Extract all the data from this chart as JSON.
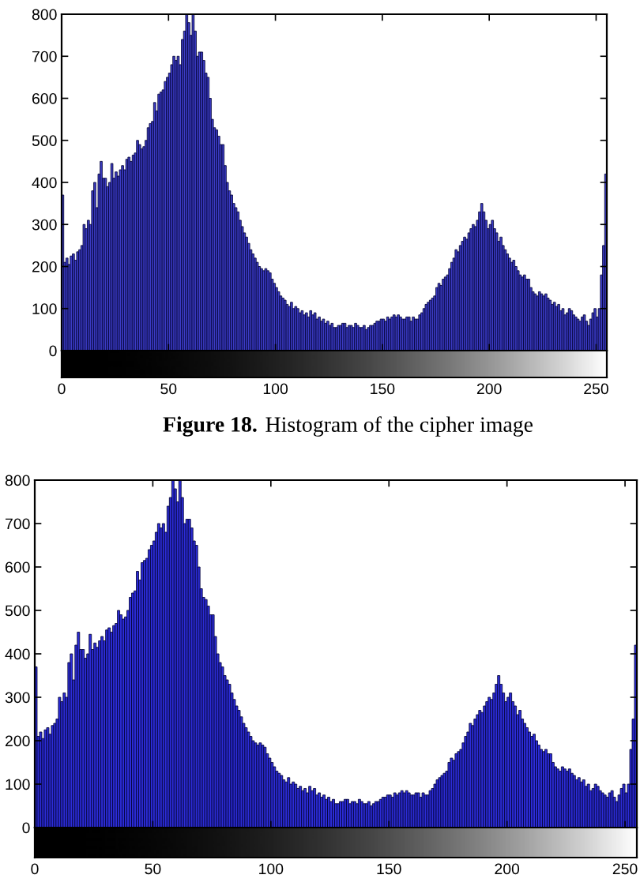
{
  "chart_data": [
    {
      "type": "histogram",
      "bins": [
        0,
        1,
        2,
        3,
        4,
        5,
        6,
        7,
        8,
        9,
        10,
        11,
        12,
        13,
        14,
        15,
        16,
        17,
        18,
        19,
        20,
        21,
        22,
        23,
        24,
        25,
        26,
        27,
        28,
        29,
        30,
        31,
        32,
        33,
        34,
        35,
        36,
        37,
        38,
        39,
        40,
        41,
        42,
        43,
        44,
        45,
        46,
        47,
        48,
        49,
        50,
        51,
        52,
        53,
        54,
        55,
        56,
        57,
        58,
        59,
        60,
        61,
        62,
        63,
        64,
        65,
        66,
        67,
        68,
        69,
        70,
        71,
        72,
        73,
        74,
        75,
        76,
        77,
        78,
        79,
        80,
        81,
        82,
        83,
        84,
        85,
        86,
        87,
        88,
        89,
        90,
        91,
        92,
        93,
        94,
        95,
        96,
        97,
        98,
        99,
        100,
        101,
        102,
        103,
        104,
        105,
        106,
        107,
        108,
        109,
        110,
        111,
        112,
        113,
        114,
        115,
        116,
        117,
        118,
        119,
        120,
        121,
        122,
        123,
        124,
        125,
        126,
        127,
        128,
        129,
        130,
        131,
        132,
        133,
        134,
        135,
        136,
        137,
        138,
        139,
        140,
        141,
        142,
        143,
        144,
        145,
        146,
        147,
        148,
        149,
        150,
        151,
        152,
        153,
        154,
        155,
        156,
        157,
        158,
        159,
        160,
        161,
        162,
        163,
        164,
        165,
        166,
        167,
        168,
        169,
        170,
        171,
        172,
        173,
        174,
        175,
        176,
        177,
        178,
        179,
        180,
        181,
        182,
        183,
        184,
        185,
        186,
        187,
        188,
        189,
        190,
        191,
        192,
        193,
        194,
        195,
        196,
        197,
        198,
        199,
        200,
        201,
        202,
        203,
        204,
        205,
        206,
        207,
        208,
        209,
        210,
        211,
        212,
        213,
        214,
        215,
        216,
        217,
        218,
        219,
        220,
        221,
        222,
        223,
        224,
        225,
        226,
        227,
        228,
        229,
        230,
        231,
        232,
        233,
        234,
        235,
        236,
        237,
        238,
        239,
        240,
        241,
        242,
        243,
        244,
        245,
        246,
        247,
        248,
        249,
        250,
        251,
        252,
        253,
        254,
        255
      ],
      "values": [
        370,
        210,
        220,
        205,
        225,
        230,
        215,
        235,
        240,
        250,
        300,
        290,
        310,
        300,
        380,
        400,
        340,
        420,
        450,
        410,
        410,
        390,
        400,
        445,
        410,
        425,
        415,
        430,
        440,
        430,
        455,
        460,
        450,
        465,
        470,
        500,
        490,
        480,
        485,
        500,
        530,
        540,
        545,
        590,
        570,
        610,
        615,
        620,
        640,
        650,
        660,
        680,
        700,
        690,
        700,
        680,
        740,
        760,
        800,
        780,
        750,
        800,
        760,
        700,
        710,
        710,
        690,
        660,
        650,
        600,
        550,
        530,
        525,
        510,
        490,
        490,
        440,
        400,
        380,
        370,
        350,
        340,
        330,
        310,
        295,
        280,
        270,
        255,
        240,
        230,
        220,
        210,
        200,
        195,
        190,
        195,
        190,
        185,
        170,
        160,
        150,
        140,
        130,
        125,
        120,
        110,
        105,
        115,
        100,
        105,
        100,
        90,
        95,
        85,
        90,
        80,
        95,
        85,
        90,
        75,
        80,
        70,
        75,
        65,
        70,
        60,
        65,
        55,
        55,
        60,
        60,
        65,
        65,
        55,
        60,
        60,
        55,
        65,
        60,
        55,
        55,
        60,
        50,
        55,
        60,
        60,
        65,
        70,
        70,
        75,
        75,
        70,
        80,
        75,
        80,
        85,
        80,
        85,
        80,
        75,
        75,
        80,
        80,
        70,
        80,
        75,
        75,
        85,
        90,
        100,
        110,
        115,
        120,
        125,
        130,
        150,
        160,
        155,
        170,
        175,
        180,
        195,
        210,
        220,
        240,
        235,
        250,
        260,
        270,
        265,
        280,
        290,
        300,
        295,
        310,
        330,
        350,
        330,
        310,
        290,
        300,
        310,
        290,
        280,
        260,
        270,
        250,
        240,
        230,
        220,
        210,
        215,
        200,
        190,
        180,
        175,
        180,
        170,
        170,
        150,
        140,
        135,
        130,
        140,
        135,
        130,
        135,
        125,
        120,
        110,
        115,
        105,
        110,
        95,
        100,
        85,
        90,
        100,
        95,
        85,
        80,
        75,
        70,
        80,
        85,
        70,
        60,
        75,
        90,
        100,
        80,
        100,
        180,
        250,
        420
      ],
      "color": "#3b3bc4",
      "xlim": [
        0,
        255
      ],
      "xticks": [
        0,
        50,
        100,
        150,
        200,
        250
      ],
      "ylim": [
        0,
        800
      ],
      "yticks": [
        0,
        100,
        200,
        300,
        400,
        500,
        600,
        700,
        800
      ],
      "annotations": [
        "Figure 18.",
        "Histogram of the cipher image"
      ]
    },
    {
      "type": "histogram",
      "bins": [
        0,
        1,
        2,
        3,
        4,
        5,
        6,
        7,
        8,
        9,
        10,
        11,
        12,
        13,
        14,
        15,
        16,
        17,
        18,
        19,
        20,
        21,
        22,
        23,
        24,
        25,
        26,
        27,
        28,
        29,
        30,
        31,
        32,
        33,
        34,
        35,
        36,
        37,
        38,
        39,
        40,
        41,
        42,
        43,
        44,
        45,
        46,
        47,
        48,
        49,
        50,
        51,
        52,
        53,
        54,
        55,
        56,
        57,
        58,
        59,
        60,
        61,
        62,
        63,
        64,
        65,
        66,
        67,
        68,
        69,
        70,
        71,
        72,
        73,
        74,
        75,
        76,
        77,
        78,
        79,
        80,
        81,
        82,
        83,
        84,
        85,
        86,
        87,
        88,
        89,
        90,
        91,
        92,
        93,
        94,
        95,
        96,
        97,
        98,
        99,
        100,
        101,
        102,
        103,
        104,
        105,
        106,
        107,
        108,
        109,
        110,
        111,
        112,
        113,
        114,
        115,
        116,
        117,
        118,
        119,
        120,
        121,
        122,
        123,
        124,
        125,
        126,
        127,
        128,
        129,
        130,
        131,
        132,
        133,
        134,
        135,
        136,
        137,
        138,
        139,
        140,
        141,
        142,
        143,
        144,
        145,
        146,
        147,
        148,
        149,
        150,
        151,
        152,
        153,
        154,
        155,
        156,
        157,
        158,
        159,
        160,
        161,
        162,
        163,
        164,
        165,
        166,
        167,
        168,
        169,
        170,
        171,
        172,
        173,
        174,
        175,
        176,
        177,
        178,
        179,
        180,
        181,
        182,
        183,
        184,
        185,
        186,
        187,
        188,
        189,
        190,
        191,
        192,
        193,
        194,
        195,
        196,
        197,
        198,
        199,
        200,
        201,
        202,
        203,
        204,
        205,
        206,
        207,
        208,
        209,
        210,
        211,
        212,
        213,
        214,
        215,
        216,
        217,
        218,
        219,
        220,
        221,
        222,
        223,
        224,
        225,
        226,
        227,
        228,
        229,
        230,
        231,
        232,
        233,
        234,
        235,
        236,
        237,
        238,
        239,
        240,
        241,
        242,
        243,
        244,
        245,
        246,
        247,
        248,
        249,
        250,
        251,
        252,
        253,
        254,
        255
      ],
      "values": [
        370,
        210,
        220,
        205,
        225,
        230,
        215,
        235,
        240,
        250,
        300,
        290,
        310,
        300,
        380,
        400,
        340,
        420,
        450,
        410,
        410,
        390,
        400,
        445,
        410,
        425,
        415,
        430,
        440,
        430,
        455,
        460,
        450,
        465,
        470,
        500,
        490,
        480,
        485,
        500,
        530,
        540,
        545,
        590,
        570,
        610,
        615,
        620,
        640,
        650,
        660,
        680,
        700,
        690,
        700,
        680,
        740,
        760,
        800,
        780,
        750,
        800,
        760,
        700,
        710,
        710,
        690,
        660,
        650,
        600,
        550,
        530,
        525,
        510,
        490,
        490,
        440,
        400,
        380,
        370,
        350,
        340,
        330,
        310,
        295,
        280,
        270,
        255,
        240,
        230,
        220,
        210,
        200,
        195,
        190,
        195,
        190,
        185,
        170,
        160,
        150,
        140,
        130,
        125,
        120,
        110,
        105,
        115,
        100,
        105,
        100,
        90,
        95,
        85,
        90,
        80,
        95,
        85,
        90,
        75,
        80,
        70,
        75,
        65,
        70,
        60,
        65,
        55,
        55,
        60,
        60,
        65,
        65,
        55,
        60,
        60,
        55,
        65,
        60,
        55,
        55,
        60,
        50,
        55,
        60,
        60,
        65,
        70,
        70,
        75,
        75,
        70,
        80,
        75,
        80,
        85,
        80,
        85,
        80,
        75,
        75,
        80,
        80,
        70,
        80,
        75,
        75,
        85,
        90,
        100,
        110,
        115,
        120,
        125,
        130,
        150,
        160,
        155,
        170,
        175,
        180,
        195,
        210,
        220,
        240,
        235,
        250,
        260,
        270,
        265,
        280,
        290,
        300,
        295,
        310,
        330,
        350,
        330,
        310,
        290,
        300,
        310,
        290,
        280,
        260,
        270,
        250,
        240,
        230,
        220,
        210,
        215,
        200,
        190,
        180,
        175,
        180,
        170,
        170,
        150,
        140,
        135,
        130,
        140,
        135,
        130,
        135,
        125,
        120,
        110,
        115,
        105,
        110,
        95,
        100,
        85,
        90,
        100,
        95,
        85,
        80,
        75,
        70,
        80,
        85,
        70,
        60,
        75,
        90,
        100,
        80,
        100,
        180,
        250,
        420
      ],
      "color": "#2c2cd8",
      "xlim": [
        0,
        255
      ],
      "xticks": [
        0,
        50,
        100,
        150,
        200,
        250
      ],
      "ylim": [
        0,
        800
      ],
      "yticks": [
        0,
        100,
        200,
        300,
        400,
        500,
        600,
        700,
        800
      ]
    }
  ]
}
